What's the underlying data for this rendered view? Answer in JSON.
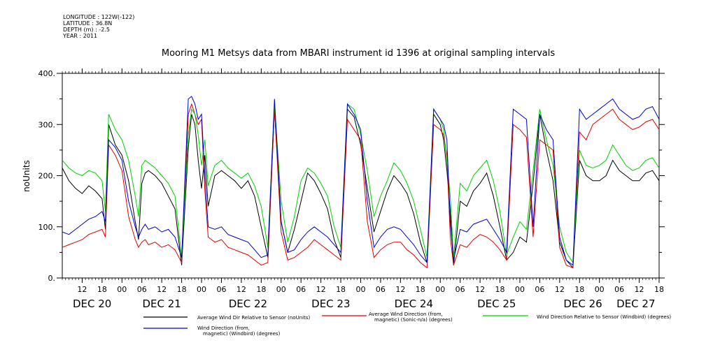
{
  "header": {
    "longitude": "LONGITUDE : 122W(-122)",
    "latitude": "LATITUDE : 36.8N",
    "depth": "DEPTH (m) : -2.5",
    "year": "YEAR : 2011"
  },
  "chart_data": {
    "type": "line",
    "title": "Mooring M1 Metsys data from MBARI instrument id 1396 at original sampling intervals",
    "ylabel": "noUnits",
    "xlabel": "",
    "ylim": [
      0,
      400
    ],
    "xlim": [
      0,
      180
    ],
    "x_unit_note": "hours from Dec 20 06:00, 2011",
    "yticks": [
      0,
      100,
      200,
      300,
      400
    ],
    "ytick_labels": [
      "0.",
      "100.",
      "200.",
      "300.",
      "400."
    ],
    "hour_ticks": [
      {
        "x": 6,
        "label": "12"
      },
      {
        "x": 12,
        "label": "18"
      },
      {
        "x": 18,
        "label": "00"
      },
      {
        "x": 24,
        "label": "06"
      },
      {
        "x": 30,
        "label": "12"
      },
      {
        "x": 36,
        "label": "18"
      },
      {
        "x": 42,
        "label": "00"
      },
      {
        "x": 48,
        "label": "06"
      },
      {
        "x": 54,
        "label": "12"
      },
      {
        "x": 60,
        "label": "18"
      },
      {
        "x": 66,
        "label": "00"
      },
      {
        "x": 72,
        "label": "06"
      },
      {
        "x": 78,
        "label": "12"
      },
      {
        "x": 84,
        "label": "18"
      },
      {
        "x": 90,
        "label": "00"
      },
      {
        "x": 96,
        "label": "06"
      },
      {
        "x": 102,
        "label": "12"
      },
      {
        "x": 108,
        "label": "18"
      },
      {
        "x": 114,
        "label": "00"
      },
      {
        "x": 120,
        "label": "06"
      },
      {
        "x": 126,
        "label": "12"
      },
      {
        "x": 132,
        "label": "18"
      },
      {
        "x": 138,
        "label": "00"
      },
      {
        "x": 144,
        "label": "06"
      },
      {
        "x": 150,
        "label": "12"
      },
      {
        "x": 156,
        "label": "18"
      },
      {
        "x": 162,
        "label": "00"
      },
      {
        "x": 168,
        "label": "06"
      },
      {
        "x": 174,
        "label": "12"
      },
      {
        "x": 180,
        "label": "18"
      }
    ],
    "day_labels": [
      {
        "x": 9,
        "label": "DEC 20"
      },
      {
        "x": 30,
        "label": "DEC 21"
      },
      {
        "x": 56,
        "label": "DEC 22"
      },
      {
        "x": 81,
        "label": "DEC 23"
      },
      {
        "x": 106,
        "label": "DEC 24"
      },
      {
        "x": 131,
        "label": "DEC 25"
      },
      {
        "x": 157,
        "label": "DEC 26"
      },
      {
        "x": 173,
        "label": "DEC 27"
      }
    ],
    "series": [
      {
        "name": "Average Wind Dir Relative to Sensor (noUnits)",
        "color": "#000000",
        "x": [
          0,
          2,
          4,
          6,
          8,
          10,
          12,
          13,
          14,
          16,
          18,
          20,
          22,
          23,
          24,
          25,
          26,
          28,
          30,
          32,
          34,
          36,
          38,
          39,
          40,
          41,
          42,
          43,
          44,
          46,
          48,
          50,
          52,
          54,
          56,
          58,
          60,
          62,
          64,
          66,
          68,
          70,
          72,
          74,
          76,
          78,
          80,
          82,
          84,
          86,
          88,
          90,
          92,
          94,
          96,
          98,
          100,
          102,
          104,
          106,
          108,
          110,
          112,
          114,
          115,
          116,
          117,
          118,
          120,
          122,
          124,
          126,
          128,
          130,
          132,
          134,
          136,
          138,
          140,
          142,
          144,
          146,
          148,
          150,
          152,
          154,
          156,
          158,
          160,
          162,
          164,
          166,
          168,
          170,
          172,
          174,
          176,
          178,
          180
        ],
        "values": [
          215,
          190,
          175,
          165,
          180,
          170,
          155,
          95,
          300,
          260,
          240,
          190,
          110,
          75,
          185,
          205,
          210,
          200,
          185,
          160,
          135,
          25,
          255,
          320,
          300,
          230,
          175,
          240,
          140,
          200,
          210,
          200,
          190,
          175,
          190,
          160,
          100,
          40,
          330,
          110,
          50,
          95,
          150,
          205,
          190,
          165,
          135,
          75,
          40,
          330,
          315,
          260,
          175,
          90,
          130,
          170,
          200,
          185,
          165,
          125,
          70,
          30,
          320,
          300,
          270,
          210,
          130,
          25,
          150,
          140,
          170,
          185,
          205,
          160,
          100,
          35,
          50,
          80,
          70,
          185,
          320,
          250,
          190,
          70,
          35,
          20,
          230,
          200,
          190,
          190,
          200,
          230,
          210,
          200,
          190,
          190,
          205,
          210,
          190
        ]
      },
      {
        "name": "Average Wind Direction (from, magnetic) (Sonic-n/a) (degrees)",
        "color": "#e00000",
        "x": [
          0,
          2,
          4,
          6,
          8,
          10,
          12,
          13,
          14,
          16,
          18,
          20,
          22,
          23,
          24,
          25,
          26,
          28,
          30,
          32,
          34,
          36,
          38,
          39,
          40,
          41,
          42,
          43,
          44,
          46,
          48,
          50,
          52,
          54,
          56,
          58,
          60,
          62,
          64,
          66,
          68,
          70,
          72,
          74,
          76,
          78,
          80,
          82,
          84,
          86,
          88,
          90,
          92,
          94,
          96,
          98,
          100,
          102,
          104,
          106,
          108,
          110,
          112,
          114,
          115,
          116,
          117,
          118,
          120,
          122,
          124,
          126,
          128,
          130,
          132,
          134,
          136,
          138,
          140,
          142,
          144,
          146,
          148,
          150,
          152,
          154,
          156,
          158,
          160,
          162,
          164,
          166,
          168,
          170,
          172,
          174,
          176,
          178,
          180
        ],
        "values": [
          60,
          65,
          70,
          75,
          85,
          90,
          95,
          80,
          260,
          240,
          210,
          120,
          75,
          60,
          70,
          75,
          65,
          70,
          60,
          65,
          55,
          30,
          320,
          340,
          320,
          300,
          310,
          170,
          80,
          70,
          75,
          60,
          55,
          50,
          45,
          35,
          25,
          30,
          330,
          90,
          35,
          40,
          50,
          60,
          75,
          65,
          55,
          45,
          35,
          310,
          290,
          270,
          110,
          40,
          55,
          65,
          70,
          70,
          55,
          45,
          30,
          20,
          300,
          290,
          280,
          240,
          80,
          25,
          65,
          60,
          75,
          85,
          80,
          70,
          55,
          35,
          300,
          290,
          275,
          80,
          270,
          260,
          250,
          60,
          25,
          20,
          285,
          270,
          300,
          310,
          320,
          330,
          310,
          300,
          290,
          295,
          305,
          310,
          290
        ]
      },
      {
        "name": "Wind Direction Relative to Sensor (Windbird) (degrees)",
        "color": "#00d000",
        "x": [
          0,
          2,
          4,
          6,
          8,
          10,
          12,
          13,
          14,
          16,
          18,
          20,
          22,
          23,
          24,
          25,
          26,
          28,
          30,
          32,
          34,
          36,
          38,
          39,
          40,
          41,
          42,
          43,
          44,
          46,
          48,
          50,
          52,
          54,
          56,
          58,
          60,
          62,
          64,
          66,
          68,
          70,
          72,
          74,
          76,
          78,
          80,
          82,
          84,
          86,
          88,
          90,
          92,
          94,
          96,
          98,
          100,
          102,
          104,
          106,
          108,
          110,
          112,
          114,
          115,
          116,
          117,
          118,
          120,
          122,
          124,
          126,
          128,
          130,
          132,
          134,
          136,
          138,
          140,
          142,
          144,
          146,
          148,
          150,
          152,
          154,
          156,
          158,
          160,
          162,
          164,
          166,
          168,
          170,
          172,
          174,
          176,
          178,
          180
        ],
        "values": [
          230,
          215,
          205,
          200,
          210,
          205,
          190,
          130,
          320,
          290,
          270,
          230,
          160,
          120,
          220,
          230,
          225,
          215,
          200,
          185,
          160,
          40,
          280,
          330,
          320,
          280,
          220,
          270,
          180,
          220,
          230,
          215,
          205,
          195,
          205,
          180,
          140,
          60,
          340,
          150,
          70,
          120,
          190,
          215,
          205,
          185,
          160,
          100,
          60,
          340,
          330,
          280,
          210,
          120,
          160,
          190,
          225,
          210,
          185,
          150,
          95,
          40,
          330,
          310,
          290,
          230,
          160,
          40,
          185,
          170,
          200,
          215,
          230,
          190,
          130,
          45,
          80,
          110,
          95,
          210,
          330,
          270,
          220,
          100,
          50,
          30,
          250,
          220,
          215,
          220,
          230,
          260,
          240,
          220,
          210,
          215,
          230,
          235,
          215
        ]
      },
      {
        "name": "Wind Direction (from, magnetic) (Windbird) (degrees)",
        "color": "#0000d0",
        "x": [
          0,
          2,
          4,
          6,
          8,
          10,
          12,
          13,
          14,
          16,
          18,
          20,
          22,
          23,
          24,
          25,
          26,
          28,
          30,
          32,
          34,
          36,
          38,
          39,
          40,
          41,
          42,
          43,
          44,
          46,
          48,
          50,
          52,
          54,
          56,
          58,
          60,
          62,
          64,
          66,
          68,
          70,
          72,
          74,
          76,
          78,
          80,
          82,
          84,
          86,
          88,
          90,
          92,
          94,
          96,
          98,
          100,
          102,
          104,
          106,
          108,
          110,
          112,
          114,
          115,
          116,
          117,
          118,
          120,
          122,
          124,
          126,
          128,
          130,
          132,
          134,
          136,
          138,
          140,
          142,
          144,
          146,
          148,
          150,
          152,
          154,
          156,
          158,
          160,
          162,
          164,
          166,
          168,
          170,
          172,
          174,
          176,
          178,
          180
        ],
        "values": [
          90,
          85,
          95,
          105,
          115,
          120,
          130,
          110,
          270,
          255,
          230,
          150,
          100,
          80,
          95,
          105,
          95,
          100,
          90,
          95,
          80,
          40,
          350,
          355,
          340,
          310,
          320,
          200,
          100,
          95,
          100,
          85,
          80,
          75,
          70,
          55,
          40,
          45,
          350,
          110,
          50,
          55,
          75,
          90,
          100,
          90,
          80,
          65,
          50,
          340,
          320,
          290,
          150,
          60,
          80,
          95,
          100,
          95,
          80,
          65,
          45,
          30,
          330,
          310,
          300,
          270,
          110,
          35,
          95,
          90,
          105,
          110,
          115,
          95,
          75,
          50,
          330,
          320,
          310,
          100,
          320,
          290,
          270,
          80,
          35,
          25,
          330,
          310,
          320,
          330,
          340,
          350,
          330,
          320,
          310,
          315,
          330,
          335,
          310
        ]
      }
    ],
    "legend": [
      {
        "label": "Average Wind Dir Relative to Sensor (noUnits)",
        "color": "#000000"
      },
      {
        "label": "Average Wind Direction (from,\nmagnetic) (Sonic-n/a) (degrees)",
        "color": "#e00000"
      },
      {
        "label": "Wind Direction Relative to Sensor (Windbird) (degrees)",
        "color": "#00d000"
      },
      {
        "label": "Wind Direction (from,\nmagnetic) (Windbird) (degrees)",
        "color": "#0000d0"
      }
    ]
  }
}
